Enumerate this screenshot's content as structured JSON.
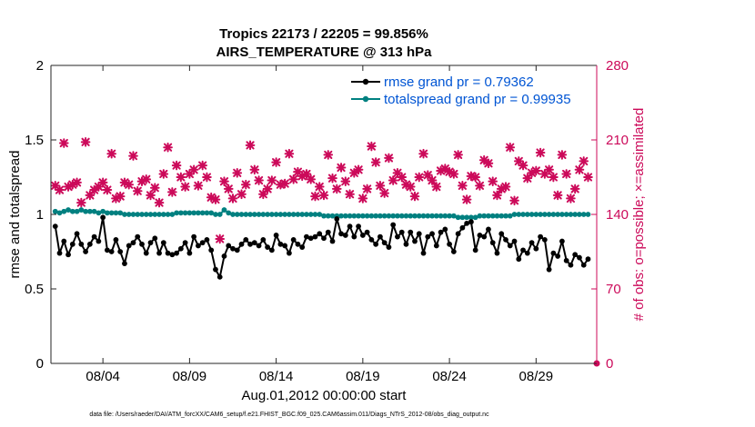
{
  "chart_data": {
    "type": "line",
    "title": "Tropics 22173 / 22205 = 99.856%",
    "subtitle": "AIRS_TEMPERATURE @ 313 hPa",
    "xlabel": "Aug.01,2012 00:00:00 start",
    "ylabel": "rmse and totalspread",
    "ylabel_right": "# of obs: o=possible; ×=assimilated",
    "footer": "data file: /Users/raeder/DAI/ATM_forcXX/CAM6_setup/f.e21.FHIST_BGC.f09_025.CAM6assim.011/Diags_NTrS_2012-08/obs_diag_output.nc",
    "xlim": [
      1.0,
      32.5
    ],
    "ylim": [
      0,
      2
    ],
    "ylim_right": [
      0,
      280
    ],
    "x_tick_values": [
      4,
      9,
      14,
      19,
      24,
      29
    ],
    "x_tick_labels": [
      "08/04",
      "08/09",
      "08/14",
      "08/19",
      "08/24",
      "08/29"
    ],
    "y_ticks": [
      "0",
      "0.5",
      "1",
      "1.5",
      "2"
    ],
    "y_ticks_right": [
      "0",
      "70",
      "140",
      "210",
      "280"
    ],
    "legend_position": "top-right",
    "grid": false,
    "colors": {
      "rmse": "#000000",
      "totalspread": "#008080",
      "obs": "#cc0a5a",
      "legend_text": "#0055d4"
    },
    "x": [
      1.25,
      1.5,
      1.75,
      2.0,
      2.25,
      2.5,
      2.75,
      3.0,
      3.25,
      3.5,
      3.75,
      4.0,
      4.25,
      4.5,
      4.75,
      5.0,
      5.25,
      5.5,
      5.75,
      6.0,
      6.25,
      6.5,
      6.75,
      7.0,
      7.25,
      7.5,
      7.75,
      8.0,
      8.25,
      8.5,
      8.75,
      9.0,
      9.25,
      9.5,
      9.75,
      10.0,
      10.25,
      10.5,
      10.75,
      11.0,
      11.25,
      11.5,
      11.75,
      12.0,
      12.25,
      12.5,
      12.75,
      13.0,
      13.25,
      13.5,
      13.75,
      14.0,
      14.25,
      14.5,
      14.75,
      15.0,
      15.25,
      15.5,
      15.75,
      16.0,
      16.25,
      16.5,
      16.75,
      17.0,
      17.25,
      17.5,
      17.75,
      18.0,
      18.25,
      18.5,
      18.75,
      19.0,
      19.25,
      19.5,
      19.75,
      20.0,
      20.25,
      20.5,
      20.75,
      21.0,
      21.25,
      21.5,
      21.75,
      22.0,
      22.25,
      22.5,
      22.75,
      23.0,
      23.25,
      23.5,
      23.75,
      24.0,
      24.25,
      24.5,
      24.75,
      25.0,
      25.25,
      25.5,
      25.75,
      26.0,
      26.25,
      26.5,
      26.75,
      27.0,
      27.25,
      27.5,
      27.75,
      28.0,
      28.25,
      28.5,
      28.75,
      29.0,
      29.25,
      29.5,
      29.75,
      30.0,
      30.25,
      30.5,
      30.75,
      31.0,
      31.25,
      31.5,
      31.75,
      32.0
    ],
    "series": [
      {
        "name": "rmse grand pr = 0.79362",
        "marker": "filled-circle",
        "values": [
          0.92,
          0.74,
          0.82,
          0.73,
          0.8,
          0.87,
          0.8,
          0.75,
          0.8,
          0.85,
          0.82,
          0.98,
          0.76,
          0.75,
          0.83,
          0.75,
          0.67,
          0.79,
          0.81,
          0.85,
          0.8,
          0.74,
          0.81,
          0.84,
          0.74,
          0.81,
          0.74,
          0.73,
          0.74,
          0.77,
          0.81,
          0.74,
          0.85,
          0.79,
          0.81,
          0.83,
          0.76,
          0.63,
          0.58,
          0.72,
          0.79,
          0.77,
          0.76,
          0.8,
          0.83,
          0.8,
          0.81,
          0.79,
          0.83,
          0.78,
          0.76,
          0.86,
          0.8,
          0.79,
          0.74,
          0.83,
          0.8,
          0.78,
          0.85,
          0.84,
          0.85,
          0.87,
          0.84,
          0.88,
          0.82,
          0.97,
          0.87,
          0.86,
          0.92,
          0.85,
          0.92,
          0.86,
          0.88,
          0.83,
          0.8,
          0.85,
          0.81,
          0.78,
          0.93,
          0.85,
          0.88,
          0.8,
          0.88,
          0.82,
          0.87,
          0.74,
          0.85,
          0.87,
          0.79,
          0.88,
          0.9,
          0.8,
          0.75,
          0.87,
          0.91,
          0.94,
          0.95,
          0.76,
          0.86,
          0.85,
          0.9,
          0.81,
          0.74,
          0.87,
          0.83,
          0.79,
          0.82,
          0.7,
          0.76,
          0.74,
          0.81,
          0.77,
          0.85,
          0.83,
          0.63,
          0.74,
          0.72,
          0.82,
          0.69,
          0.66,
          0.73,
          0.71,
          0.66,
          0.7
        ]
      },
      {
        "name": "totalspread grand pr = 0.99935",
        "marker": "filled-circle",
        "values": [
          1.02,
          1.01,
          1.02,
          1.03,
          1.02,
          1.02,
          1.03,
          1.02,
          1.02,
          1.02,
          1.01,
          1.02,
          1.01,
          1.01,
          1.01,
          1.01,
          1.0,
          1.0,
          1.0,
          1.0,
          1.0,
          1.0,
          1.0,
          1.0,
          1.0,
          1.0,
          1.0,
          1.0,
          1.01,
          1.01,
          1.01,
          1.01,
          1.01,
          1.01,
          1.01,
          1.01,
          1.01,
          1.0,
          1.0,
          1.03,
          1.01,
          1.0,
          1.0,
          1.0,
          1.0,
          1.0,
          1.0,
          1.0,
          1.0,
          1.0,
          1.0,
          1.0,
          1.0,
          1.0,
          1.0,
          1.0,
          1.0,
          1.0,
          1.0,
          1.0,
          1.0,
          1.0,
          0.99,
          0.99,
          0.99,
          0.99,
          0.99,
          0.99,
          0.99,
          0.99,
          0.99,
          0.99,
          0.99,
          0.99,
          0.99,
          0.99,
          0.99,
          0.99,
          0.99,
          0.99,
          0.99,
          0.99,
          0.99,
          0.99,
          0.99,
          0.99,
          0.99,
          0.99,
          0.99,
          0.99,
          0.99,
          0.99,
          0.99,
          0.98,
          0.98,
          0.98,
          0.98,
          0.98,
          0.99,
          0.99,
          0.99,
          0.99,
          0.99,
          0.99,
          0.99,
          0.99,
          1.0,
          1.0,
          1.0,
          1.0,
          1.0,
          1.0,
          1.0,
          1.0,
          1.0,
          1.0,
          1.0,
          1.0,
          1.0,
          1.0,
          1.0,
          1.0,
          1.0,
          1.0
        ]
      },
      {
        "name": "obs_assimilated",
        "axis": "right",
        "marker": "x-star",
        "values": [
          167,
          163,
          207,
          166,
          168,
          170,
          151,
          208,
          158,
          163,
          166,
          170,
          163,
          197,
          155,
          157,
          170,
          168,
          195,
          162,
          171,
          173,
          158,
          165,
          151,
          178,
          203,
          161,
          186,
          175,
          166,
          178,
          182,
          167,
          186,
          175,
          156,
          154,
          117,
          171,
          164,
          155,
          179,
          159,
          168,
          205,
          182,
          172,
          159,
          164,
          172,
          189,
          168,
          169,
          197,
          173,
          180,
          176,
          178,
          173,
          157,
          166,
          158,
          196,
          174,
          164,
          184,
          171,
          159,
          179,
          182,
          155,
          164,
          204,
          189,
          167,
          160,
          193,
          172,
          179,
          175,
          168,
          166,
          157,
          175,
          197,
          177,
          172,
          166,
          181,
          183,
          180,
          178,
          196,
          167,
          154,
          176,
          175,
          167,
          191,
          188,
          171,
          158,
          164,
          166,
          203,
          153,
          190,
          186,
          174,
          179,
          181,
          198,
          178,
          182,
          175,
          158,
          196,
          178,
          155,
          164,
          182,
          190,
          175
        ]
      }
    ]
  }
}
